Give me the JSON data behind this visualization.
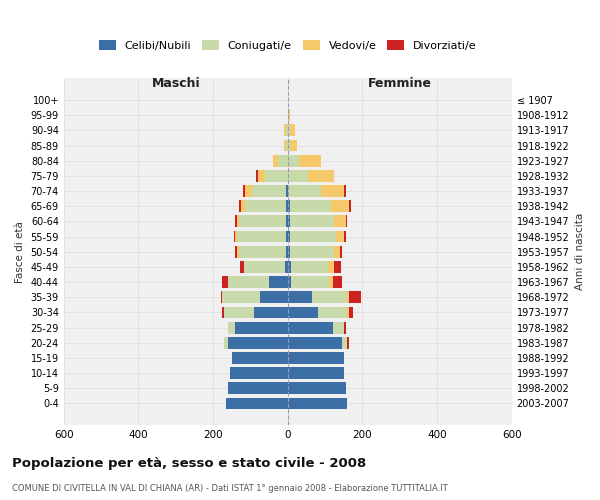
{
  "age_groups": [
    "0-4",
    "5-9",
    "10-14",
    "15-19",
    "20-24",
    "25-29",
    "30-34",
    "35-39",
    "40-44",
    "45-49",
    "50-54",
    "55-59",
    "60-64",
    "65-69",
    "70-74",
    "75-79",
    "80-84",
    "85-89",
    "90-94",
    "95-99",
    "100+"
  ],
  "birth_years": [
    "2003-2007",
    "1998-2002",
    "1993-1997",
    "1988-1992",
    "1983-1987",
    "1978-1982",
    "1973-1977",
    "1968-1972",
    "1963-1967",
    "1958-1962",
    "1953-1957",
    "1948-1952",
    "1943-1947",
    "1938-1942",
    "1933-1937",
    "1928-1932",
    "1923-1927",
    "1918-1922",
    "1913-1917",
    "1908-1912",
    "≤ 1907"
  ],
  "male_celibe": [
    165,
    160,
    155,
    150,
    160,
    140,
    90,
    75,
    50,
    8,
    5,
    5,
    5,
    5,
    5,
    0,
    0,
    0,
    0,
    0,
    0
  ],
  "male_coniugato": [
    0,
    0,
    0,
    0,
    10,
    20,
    80,
    100,
    110,
    110,
    125,
    130,
    125,
    110,
    90,
    60,
    25,
    5,
    5,
    0,
    0
  ],
  "male_vedovo": [
    0,
    0,
    0,
    0,
    0,
    0,
    0,
    0,
    0,
    0,
    5,
    5,
    5,
    10,
    20,
    20,
    15,
    5,
    5,
    0,
    0
  ],
  "male_divorziato": [
    0,
    0,
    0,
    0,
    0,
    0,
    5,
    5,
    15,
    10,
    5,
    5,
    5,
    5,
    5,
    5,
    0,
    0,
    0,
    0,
    0
  ],
  "female_celibe": [
    160,
    155,
    150,
    150,
    145,
    120,
    80,
    65,
    10,
    8,
    5,
    5,
    5,
    5,
    0,
    0,
    0,
    0,
    0,
    0,
    0
  ],
  "female_coniugato": [
    0,
    0,
    0,
    0,
    15,
    30,
    80,
    95,
    100,
    100,
    120,
    125,
    120,
    110,
    90,
    55,
    30,
    5,
    5,
    0,
    0
  ],
  "female_vedovo": [
    0,
    0,
    0,
    0,
    0,
    0,
    5,
    5,
    10,
    15,
    15,
    20,
    30,
    50,
    60,
    70,
    60,
    20,
    15,
    5,
    0
  ],
  "female_divorziato": [
    0,
    0,
    0,
    0,
    5,
    5,
    10,
    30,
    25,
    20,
    5,
    5,
    5,
    5,
    5,
    0,
    0,
    0,
    0,
    0,
    0
  ],
  "colors": {
    "celibe": "#3A6EA5",
    "coniugato": "#C8D9AA",
    "vedovo": "#F5C869",
    "divorziato": "#CC2222"
  },
  "xlim": 600,
  "title": "Popolazione per età, sesso e stato civile - 2008",
  "subtitle": "COMUNE DI CIVITELLA IN VAL DI CHIANA (AR) - Dati ISTAT 1° gennaio 2008 - Elaborazione TUTTITALIA.IT",
  "xlabel_left": "Maschi",
  "xlabel_right": "Femmine",
  "ylabel": "Fasce di età",
  "ylabel_right": "Anni di nascita",
  "legend_labels": [
    "Celibi/Nubili",
    "Coniugati/e",
    "Vedovi/e",
    "Divorziati/e"
  ],
  "bg_color": "#FFFFFF",
  "plot_bg_color": "#F0F0F0",
  "grid_color": "#DDDDDD"
}
